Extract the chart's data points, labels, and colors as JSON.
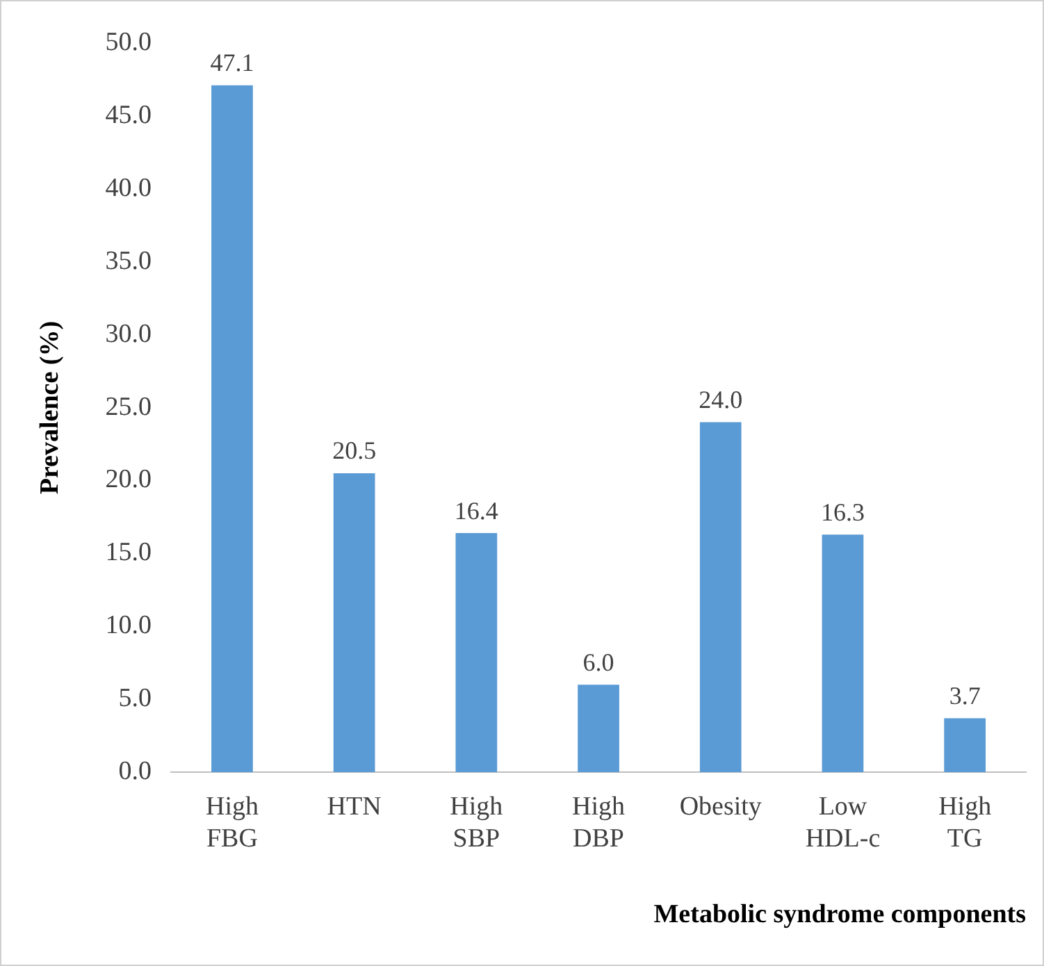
{
  "chart_data": {
    "type": "bar",
    "xlabel": "Metabolic syndrome components",
    "ylabel": "Prevalence (%)",
    "categories": [
      "High FBG",
      "HTN",
      "High SBP",
      "High DBP",
      "Obesity",
      "Low HDL-c",
      "High TG"
    ],
    "values": [
      47.1,
      20.5,
      16.4,
      6.0,
      24.0,
      16.3,
      3.7
    ],
    "value_labels": [
      "47.1",
      "20.5",
      "16.4",
      "6.0",
      "24.0",
      "16.3",
      "3.7"
    ],
    "color": "#5b9bd5",
    "ylim": [
      0,
      50
    ],
    "yticks": [
      {
        "value": 0,
        "label": "0.0"
      },
      {
        "value": 5,
        "label": "5.0"
      },
      {
        "value": 10,
        "label": "10.0"
      },
      {
        "value": 15,
        "label": "15.0"
      },
      {
        "value": 20,
        "label": "20.0"
      },
      {
        "value": 25,
        "label": "25.0"
      },
      {
        "value": 30,
        "label": "30.0"
      },
      {
        "value": 35,
        "label": "35.0"
      },
      {
        "value": 40,
        "label": "40.0"
      },
      {
        "value": 45,
        "label": "45.0"
      },
      {
        "value": 50,
        "label": "50.0"
      }
    ],
    "grid": false,
    "legend": false
  }
}
